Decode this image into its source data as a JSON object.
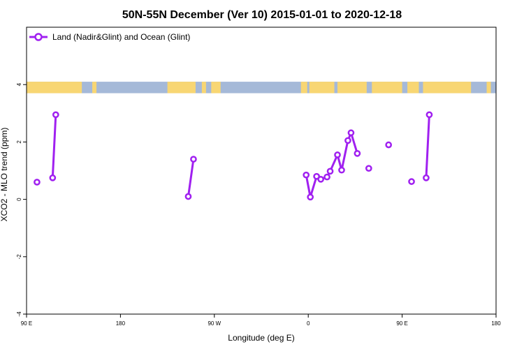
{
  "chart_data": {
    "type": "line",
    "title": "50N-55N December (Ver 10)   2015-01-01 to 2020-12-18",
    "xlabel": "Longitude (deg E)",
    "ylabel": "XCO2 - MLO trend (ppm)",
    "xlim": [
      90,
      540
    ],
    "ylim": [
      -4,
      6
    ],
    "x_ticks": [
      {
        "value": 90,
        "label": "90 E"
      },
      {
        "value": 180,
        "label": "180"
      },
      {
        "value": 270,
        "label": "90 W"
      },
      {
        "value": 360,
        "label": "0"
      },
      {
        "value": 450,
        "label": "90 E"
      },
      {
        "value": 540,
        "label": "180"
      }
    ],
    "y_ticks": [
      {
        "value": -4,
        "label": "-4"
      },
      {
        "value": -2,
        "label": "-2"
      },
      {
        "value": 0,
        "label": "0"
      },
      {
        "value": 2,
        "label": "2"
      },
      {
        "value": 4,
        "label": "4"
      }
    ],
    "legend": {
      "position": "top-left"
    },
    "series": [
      {
        "name": "Land (Nadir&Glint) and Ocean (Glint)",
        "color": "#a020f0",
        "segments": [
          [
            [
              100,
              0.6
            ]
          ],
          [
            [
              115,
              0.75
            ],
            [
              118,
              2.95
            ]
          ],
          [
            [
              245,
              0.1
            ],
            [
              250,
              1.4
            ]
          ],
          [
            [
              358,
              0.85
            ],
            [
              362,
              0.08
            ],
            [
              368,
              0.8
            ],
            [
              372,
              0.7
            ],
            [
              378,
              0.78
            ],
            [
              381,
              0.98
            ],
            [
              388,
              1.55
            ],
            [
              392,
              1.02
            ],
            [
              398,
              2.05
            ],
            [
              401,
              2.32
            ],
            [
              407,
              1.6
            ]
          ],
          [
            [
              418,
              1.08
            ]
          ],
          [
            [
              437,
              1.9
            ]
          ],
          [
            [
              459,
              0.62
            ]
          ],
          [
            [
              473,
              0.75
            ],
            [
              476,
              2.95
            ]
          ]
        ]
      }
    ],
    "map_strip": {
      "y_range": [
        3.7,
        4.1
      ],
      "ocean_color": "#a5b9d8",
      "land_color": "#f8d673",
      "land_spans": [
        [
          90,
          143
        ],
        [
          153,
          157
        ],
        [
          225,
          252
        ],
        [
          258,
          262
        ],
        [
          267,
          276
        ],
        [
          353,
          359
        ],
        [
          361,
          385
        ],
        [
          388,
          416
        ],
        [
          421,
          450
        ],
        [
          455,
          466
        ],
        [
          470,
          516
        ],
        [
          531,
          535
        ]
      ]
    }
  }
}
